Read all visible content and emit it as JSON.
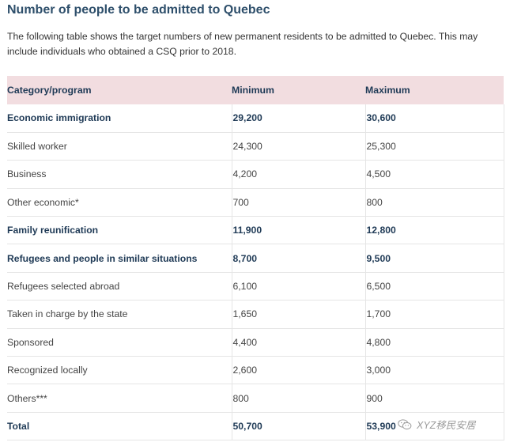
{
  "title": "Number of people to be admitted to Quebec",
  "intro": "The following table shows the target numbers of new permanent residents to be admitted to Quebec. This may include individuals who obtained a CSQ prior to 2018.",
  "table": {
    "headers": [
      "Category/program",
      "Minimum",
      "Maximum"
    ],
    "rows": [
      {
        "category": "Economic immigration",
        "min": "29,200",
        "max": "30,600",
        "bold": true
      },
      {
        "category": "Skilled worker",
        "min": "24,300",
        "max": "25,300",
        "bold": false
      },
      {
        "category": "Business",
        "min": "4,200",
        "max": "4,500",
        "bold": false
      },
      {
        "category": "Other economic*",
        "min": "700",
        "max": "800",
        "bold": false
      },
      {
        "category": "Family reunification",
        "min": "11,900",
        "max": "12,800",
        "bold": true
      },
      {
        "category": "Refugees and people in similar situations",
        "min": "8,700",
        "max": "9,500",
        "bold": true
      },
      {
        "category": "Refugees selected abroad",
        "min": "6,100",
        "max": "6,500",
        "bold": false
      },
      {
        "category": "Taken in charge by the state",
        "min": "1,650",
        "max": "1,700",
        "bold": false
      },
      {
        "category": "Sponsored",
        "min": "4,400",
        "max": "4,800",
        "bold": false
      },
      {
        "category": "Recognized locally",
        "min": "2,600",
        "max": "3,000",
        "bold": false
      },
      {
        "category": "Others***",
        "min": "800",
        "max": "900",
        "bold": false
      },
      {
        "category": "Total",
        "min": "50,700",
        "max": "53,900",
        "bold": true
      }
    ]
  },
  "watermark": {
    "text": "XYZ移民安居",
    "icon": "wechat-icon"
  },
  "colors": {
    "title": "#2e4f6b",
    "header_bg": "#f2dde0",
    "bold_text": "#1f3a56"
  }
}
